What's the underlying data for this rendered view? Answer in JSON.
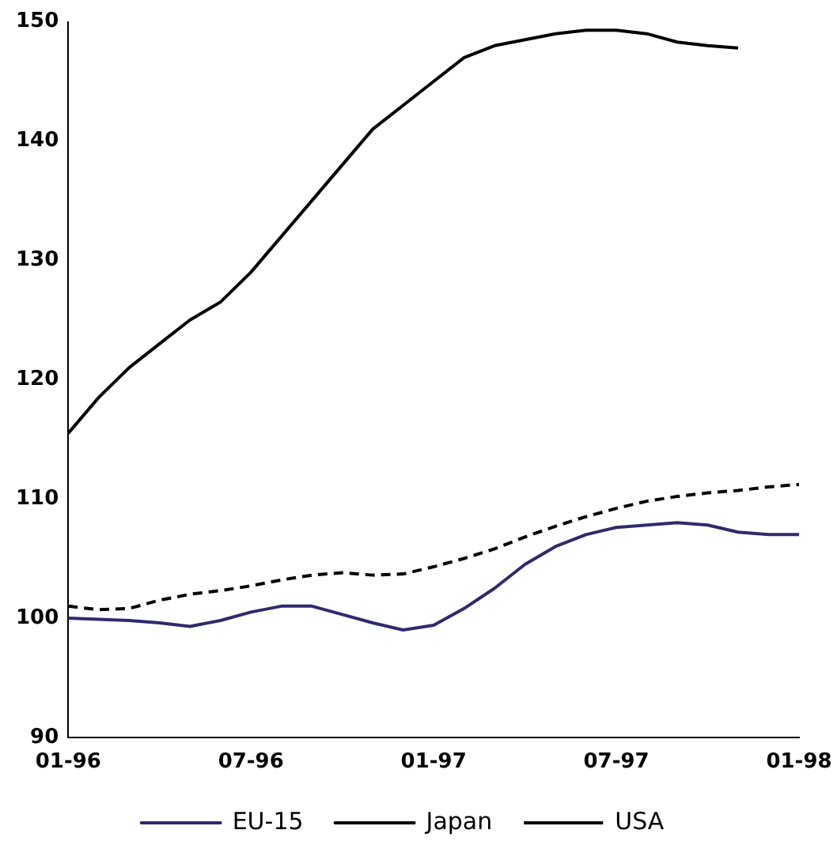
{
  "chart_data": {
    "type": "line",
    "categories": [
      "01-96",
      null,
      null,
      null,
      null,
      null,
      "07-96",
      null,
      null,
      null,
      null,
      null,
      "01-97",
      null,
      null,
      null,
      null,
      null,
      "07-97",
      null,
      null,
      null,
      null,
      null,
      "01-98"
    ],
    "series": [
      {
        "name": "EU-15",
        "color": "#2e2a6e",
        "line_style": "solid",
        "values": [
          100,
          99.9,
          99.8,
          99.6,
          99.3,
          99.8,
          100.5,
          101,
          101,
          100.3,
          99.6,
          99,
          99.4,
          100.8,
          102.5,
          104.5,
          106,
          107,
          107.6,
          107.8,
          108,
          107.8,
          107.2,
          107,
          107
        ]
      },
      {
        "name": "Japan",
        "color": "#000000",
        "line_style": "solid",
        "values": [
          115.5,
          118.5,
          121,
          123,
          125,
          126.5,
          129,
          132,
          135,
          138,
          141,
          143,
          145,
          147,
          148,
          148.5,
          149,
          149.3,
          149.3,
          149,
          148.3,
          148,
          147.8,
          null,
          null
        ]
      },
      {
        "name": "USA",
        "color": "#000000",
        "line_style": "dashed",
        "values": [
          101,
          100.7,
          100.8,
          101.5,
          102,
          102.3,
          102.7,
          103.2,
          103.6,
          103.8,
          103.6,
          103.7,
          104.3,
          105,
          105.8,
          106.8,
          107.7,
          108.5,
          109.2,
          109.8,
          110.2,
          110.5,
          110.7,
          111,
          111.2
        ]
      }
    ],
    "ylim": [
      90,
      150
    ],
    "yticks": [
      90,
      100,
      110,
      120,
      130,
      140,
      150
    ],
    "grid": false,
    "legend": "bottom",
    "marker": "none"
  }
}
